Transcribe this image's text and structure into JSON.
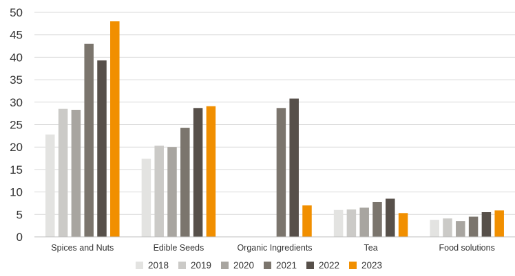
{
  "chart_data": {
    "type": "bar",
    "categories": [
      "Spices and Nuts",
      "Edible Seeds",
      "Organic Ingredients",
      "Tea",
      "Food solutions"
    ],
    "series": [
      {
        "name": "2018",
        "color": "#e3e3e1",
        "values": [
          22.8,
          17.4,
          null,
          6.0,
          3.8
        ]
      },
      {
        "name": "2019",
        "color": "#cbcac7",
        "values": [
          28.5,
          20.3,
          null,
          6.1,
          4.1
        ]
      },
      {
        "name": "2020",
        "color": "#a8a5a0",
        "values": [
          28.3,
          20.0,
          null,
          6.5,
          3.5
        ]
      },
      {
        "name": "2021",
        "color": "#7b756d",
        "values": [
          43.0,
          24.3,
          28.7,
          7.8,
          4.5
        ]
      },
      {
        "name": "2022",
        "color": "#57504a",
        "values": [
          39.3,
          28.7,
          30.8,
          8.5,
          5.5
        ]
      },
      {
        "name": "2023",
        "color": "#f18f00",
        "values": [
          48.0,
          29.1,
          7.0,
          5.3,
          5.9
        ]
      }
    ],
    "ylim": [
      0,
      50
    ],
    "yticks": [
      0,
      5,
      10,
      15,
      20,
      25,
      30,
      35,
      40,
      45,
      50
    ],
    "grid": true,
    "legend_position": "bottom-center"
  }
}
